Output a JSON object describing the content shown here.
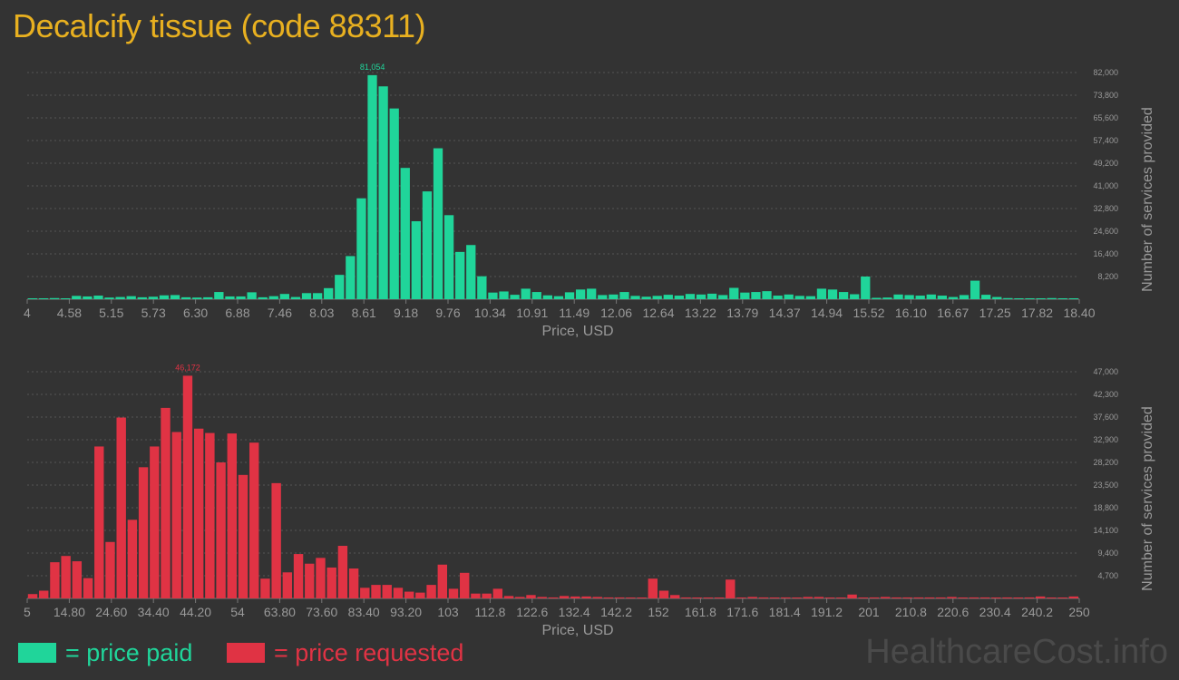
{
  "title": "Decalcify tissue (code 88311)",
  "colors": {
    "paid": "#20d59a",
    "requested": "#e03344",
    "title": "#e8b020",
    "grid": "#555555",
    "axis_text": "#999999"
  },
  "legend": {
    "paid": "= price paid",
    "requested": "= price requested"
  },
  "watermark": "HealthcareCost.info",
  "chart_data": [
    {
      "type": "bar",
      "name": "price paid",
      "xlabel": "Price, USD",
      "ylabel": "Number of services provided",
      "peak_label": "81,054",
      "x_ticks": [
        "4",
        "4.58",
        "5.15",
        "5.73",
        "6.30",
        "6.88",
        "7.46",
        "8.03",
        "8.61",
        "9.18",
        "9.76",
        "10.34",
        "10.91",
        "11.49",
        "12.06",
        "12.64",
        "13.22",
        "13.79",
        "14.37",
        "14.94",
        "15.52",
        "16.10",
        "16.67",
        "17.25",
        "17.82",
        "18.40"
      ],
      "y_ticks": [
        "8,200",
        "16,400",
        "24,600",
        "32,800",
        "41,000",
        "49,200",
        "57,400",
        "65,600",
        "73,800",
        "82,000"
      ],
      "ylim": [
        0,
        82000
      ],
      "values": [
        300,
        200,
        400,
        200,
        1200,
        1000,
        1300,
        600,
        800,
        1100,
        700,
        900,
        1400,
        1500,
        700,
        600,
        700,
        2600,
        1000,
        1000,
        2500,
        700,
        1100,
        1900,
        800,
        2200,
        2200,
        4000,
        8800,
        15600,
        36500,
        81054,
        77000,
        69000,
        47500,
        28200,
        39000,
        54600,
        30400,
        17100,
        19600,
        8300,
        2400,
        2800,
        1600,
        3800,
        2600,
        1400,
        1100,
        2500,
        3500,
        3800,
        1500,
        1700,
        2600,
        1200,
        900,
        1200,
        1600,
        1300,
        1900,
        1700,
        2000,
        1500,
        4100,
        2400,
        2600,
        2900,
        1300,
        1700,
        1200,
        1100,
        3800,
        3500,
        2600,
        1800,
        8200,
        500,
        600,
        1700,
        1500,
        1300,
        1700,
        1300,
        800,
        1500,
        6700,
        1600,
        800,
        400,
        200,
        100,
        300,
        400,
        300,
        200
      ]
    },
    {
      "type": "bar",
      "name": "price requested",
      "xlabel": "Price, USD",
      "ylabel": "Number of services provided",
      "peak_label": "46,172",
      "x_ticks": [
        "5",
        "14.80",
        "24.60",
        "34.40",
        "44.20",
        "54",
        "63.80",
        "73.60",
        "83.40",
        "93.20",
        "103",
        "112.8",
        "122.6",
        "132.4",
        "142.2",
        "152",
        "161.8",
        "171.6",
        "181.4",
        "191.2",
        "201",
        "210.8",
        "220.6",
        "230.4",
        "240.2",
        "250"
      ],
      "y_ticks": [
        "4,700",
        "9,400",
        "14,100",
        "18,800",
        "23,500",
        "28,200",
        "32,900",
        "37,600",
        "42,300",
        "47,000"
      ],
      "ylim": [
        0,
        47000
      ],
      "values": [
        900,
        1600,
        7500,
        8800,
        7700,
        4200,
        31500,
        11700,
        37500,
        16300,
        27200,
        31500,
        39500,
        34500,
        46172,
        35200,
        34300,
        28200,
        34200,
        25600,
        32300,
        4100,
        23900,
        5400,
        9200,
        7200,
        8400,
        6400,
        10900,
        6200,
        2200,
        2800,
        2800,
        2200,
        1400,
        1200,
        2800,
        7000,
        2000,
        5300,
        1000,
        1000,
        2000,
        500,
        300,
        700,
        300,
        200,
        500,
        400,
        400,
        300,
        200,
        200,
        100,
        100,
        4100,
        1600,
        700,
        200,
        100,
        100,
        100,
        3900,
        100,
        300,
        200,
        100,
        200,
        100,
        300,
        300,
        100,
        100,
        800,
        100,
        200,
        300,
        200,
        200,
        200,
        200,
        200,
        300,
        100,
        200,
        200,
        100,
        200,
        100,
        200,
        400,
        100,
        100,
        400
      ]
    }
  ]
}
